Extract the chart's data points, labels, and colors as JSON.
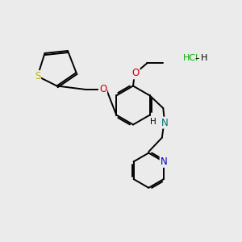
{
  "bg": "#ebebeb",
  "bond_color": "#000000",
  "lw": 1.4,
  "S_color": "#b8b800",
  "O_color": "#cc0000",
  "N_color": "#0000cc",
  "NH_color": "#007070",
  "Cl_color": "#00aa00",
  "H_color": "#000000",
  "fs": 7.5,
  "xlim": [
    0,
    10
  ],
  "ylim": [
    0,
    10
  ]
}
